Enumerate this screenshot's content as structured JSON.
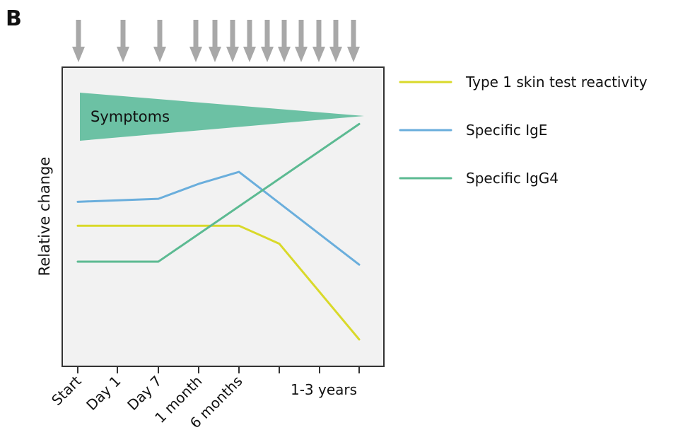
{
  "panel_label": "B",
  "chart_data": {
    "type": "line",
    "title": "",
    "ylabel": "Relative change",
    "xlabel": "",
    "x_ticks": [
      "Start",
      "Day 1",
      "Day 7",
      "1 month",
      "6 months",
      "",
      "",
      "1-3 years"
    ],
    "injection_arrow_count": 13,
    "symptoms_label": "Symptoms",
    "series": [
      {
        "name": "Type 1 skin test reactivity",
        "color": "#d9d92a",
        "points": [
          [
            0,
            47
          ],
          [
            4,
            47
          ],
          [
            5,
            41
          ],
          [
            7,
            9
          ]
        ]
      },
      {
        "name": "Specific IgE",
        "color": "#6aaedc",
        "points": [
          [
            0,
            55
          ],
          [
            2,
            56
          ],
          [
            3,
            61
          ],
          [
            4,
            65
          ],
          [
            7,
            34
          ]
        ]
      },
      {
        "name": "Specific IgG4",
        "color": "#5cba92",
        "points": [
          [
            0,
            35
          ],
          [
            2,
            35
          ],
          [
            7,
            81
          ]
        ]
      }
    ],
    "legend_position": "right",
    "grid": false,
    "colors": {
      "symptoms_fill": "#6cc1a4",
      "plot_background": "#f2f2f2",
      "arrow": "#a8a8a8"
    }
  }
}
